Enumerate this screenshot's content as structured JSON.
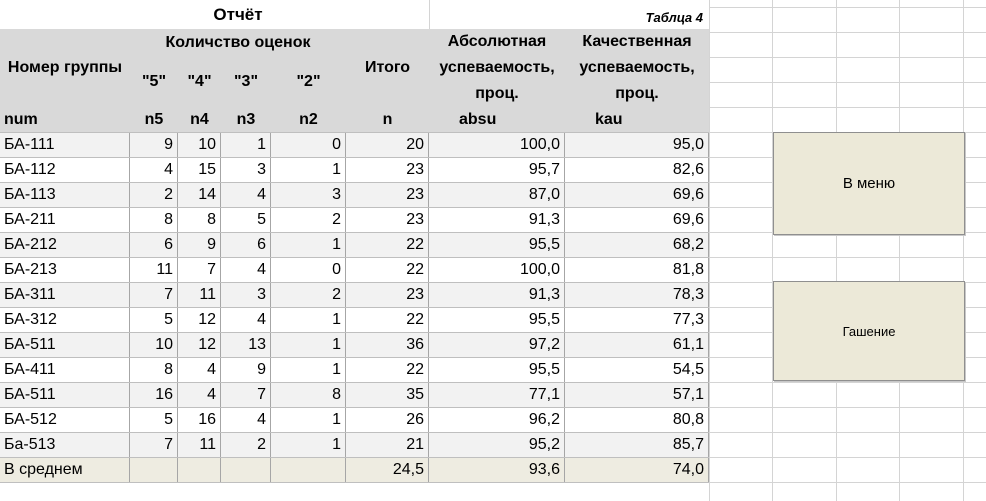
{
  "title": "Отчёт",
  "table_label": "Таблца 4",
  "headers": {
    "group_number": "Номер группы",
    "grades_count": "Количство оценок",
    "g5": "\"5\"",
    "g4": "\"4\"",
    "g3": "\"3\"",
    "g2": "\"2\"",
    "total": "Итого",
    "abs_line1": "Абсолютная",
    "abs_line2": "успеваемость,",
    "abs_line3": "проц.",
    "qual_line1": "Качественная",
    "qual_line2": "успеваемость,",
    "qual_line3": "проц."
  },
  "codes": [
    "num",
    "n5",
    "n4",
    "n3",
    "n2",
    "n",
    "absu",
    "kau"
  ],
  "rows": [
    [
      "БА-111",
      "9",
      "10",
      "1",
      "0",
      "20",
      "100,0",
      "95,0"
    ],
    [
      "БА-112",
      "4",
      "15",
      "3",
      "1",
      "23",
      "95,7",
      "82,6"
    ],
    [
      "БА-113",
      "2",
      "14",
      "4",
      "3",
      "23",
      "87,0",
      "69,6"
    ],
    [
      "БА-211",
      "8",
      "8",
      "5",
      "2",
      "23",
      "91,3",
      "69,6"
    ],
    [
      "БА-212",
      "6",
      "9",
      "6",
      "1",
      "22",
      "95,5",
      "68,2"
    ],
    [
      "БА-213",
      "11",
      "7",
      "4",
      "0",
      "22",
      "100,0",
      "81,8"
    ],
    [
      "БА-311",
      "7",
      "11",
      "3",
      "2",
      "23",
      "91,3",
      "78,3"
    ],
    [
      "БА-312",
      "5",
      "12",
      "4",
      "1",
      "22",
      "95,5",
      "77,3"
    ],
    [
      "БА-511",
      "10",
      "12",
      "13",
      "1",
      "36",
      "97,2",
      "61,1"
    ],
    [
      "БА-411",
      "8",
      "4",
      "9",
      "1",
      "22",
      "95,5",
      "54,5"
    ],
    [
      "БА-511",
      "16",
      "4",
      "7",
      "8",
      "35",
      "77,1",
      "57,1"
    ],
    [
      "БА-512",
      "5",
      "16",
      "4",
      "1",
      "26",
      "96,2",
      "80,8"
    ],
    [
      "Ба-513",
      "7",
      "11",
      "2",
      "1",
      "21",
      "95,2",
      "85,7"
    ]
  ],
  "average": [
    "В среднем",
    "",
    "",
    "",
    "",
    "24,5",
    "93,6",
    "74,0"
  ],
  "buttons": {
    "menu": "В меню",
    "reset": "Гашение"
  },
  "colors": {
    "header_bg": "#d9d9d9",
    "row_odd": "#f2f2f2",
    "avg_bg": "#eeece1",
    "button_bg": "#ece9d8",
    "gridline": "#d4d4d4"
  }
}
